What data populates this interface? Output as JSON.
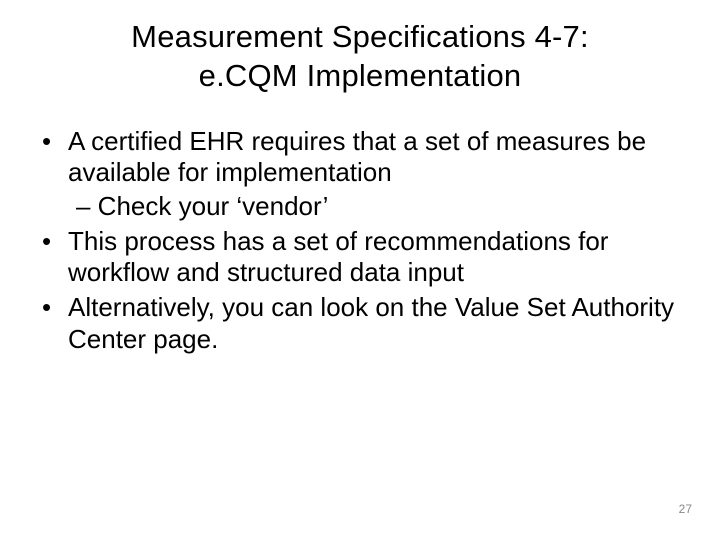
{
  "title_line1": "Measurement Specifications 4-7:",
  "title_line2": "e.CQM Implementation",
  "bullets": {
    "b1": "A certified EHR requires that a set of measures be available for implementation",
    "b1_sub": "– Check your ‘vendor’",
    "b2": "This process has a set of recommendations for workflow and structured data input",
    "b3": "Alternatively, you can look on the Value Set Authority Center page."
  },
  "page_number": "27",
  "style": {
    "background_color": "#ffffff",
    "text_color": "#000000",
    "title_fontsize_pt": 24,
    "body_fontsize_pt": 20,
    "pageno_fontsize_pt": 9,
    "pageno_color": "#888888",
    "title_font": "Verdana",
    "body_font": "Arial"
  }
}
